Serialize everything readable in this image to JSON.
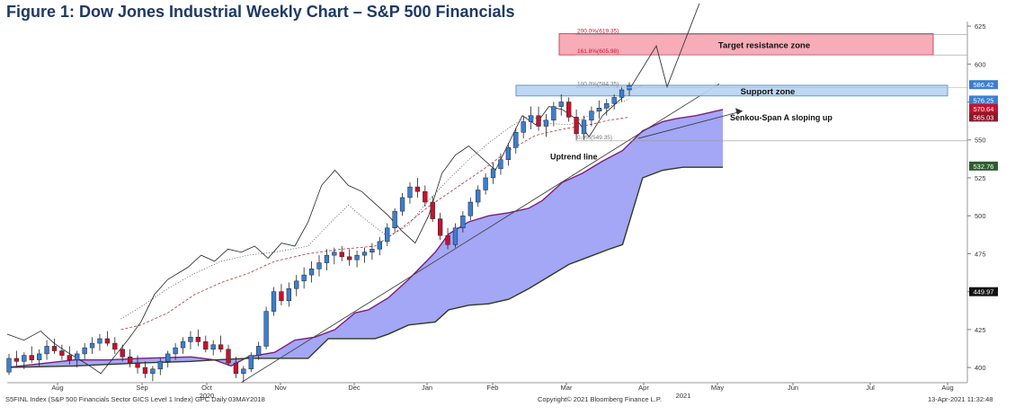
{
  "title": "Figure 1: Dow Jones Industrial Weekly Chart – S&P 500 Financials",
  "footer": {
    "left": "S5FINL Index (S&P 500 Financials Sector GICS Level 1 Index) GPC  Daily 03MAY2018",
    "center": "Copyright© 2021 Bloomberg Finance L.P.",
    "right": "13-Apr-2021 11:32:48"
  },
  "colors": {
    "up": "#3a7fd0",
    "down": "#c8102e",
    "cloud": "#9a9cf5",
    "resistance_fill": "#f7a6b3",
    "resistance_border": "#d23a52",
    "support_fill": "#b9d4f2",
    "support_border": "#5a8fcf",
    "accent_fib": "#c8102e"
  },
  "chart_data": {
    "type": "candlestick",
    "x_ticks": [
      "Aug",
      "Sep",
      "Oct",
      "Nov",
      "Dec",
      "Jan",
      "Feb",
      "Mar",
      "Apr",
      "May",
      "Jun",
      "Jul",
      "Aug"
    ],
    "year_labels": [
      "2020",
      "2021"
    ],
    "y_ticks": [
      400,
      425,
      450,
      475,
      500,
      525,
      550,
      575,
      600,
      625
    ],
    "ylim": [
      390,
      628
    ],
    "price_tags": [
      {
        "value": 586.42,
        "label": "586.42",
        "color": "#3a7fd0"
      },
      {
        "value": 576.25,
        "label": "576.25",
        "color": "#3a7fd0"
      },
      {
        "value": 570.64,
        "label": "570.64",
        "color": "#c8102e"
      },
      {
        "value": 565.03,
        "label": "565.03",
        "color": "#8b1a2b"
      },
      {
        "value": 532.76,
        "label": "532.76",
        "color": "#2e5d2e"
      },
      {
        "value": 449.97,
        "label": "449.97",
        "color": "#111111"
      }
    ],
    "fib_levels": [
      {
        "label": "200.0%(619.35)",
        "value": 619.35
      },
      {
        "label": "161.8%(605.98)",
        "value": 605.98
      },
      {
        "label": "100.0%(584.35)",
        "value": 584.35
      },
      {
        "label": "0.0%(549.35)",
        "value": 549.35
      }
    ],
    "zones": [
      {
        "name": "Target resistance zone",
        "low": 606,
        "high": 620
      },
      {
        "name": "Support zone",
        "low": 579,
        "high": 586
      }
    ],
    "annotations": [
      "Senkou-Span A sloping up",
      "Uptrend line"
    ],
    "candles_ohlc": [
      [
        397,
        409,
        395,
        406
      ],
      [
        406,
        411,
        401,
        404
      ],
      [
        404,
        410,
        399,
        408
      ],
      [
        408,
        414,
        403,
        405
      ],
      [
        405,
        412,
        401,
        409
      ],
      [
        409,
        418,
        405,
        414
      ],
      [
        414,
        419,
        409,
        411
      ],
      [
        411,
        415,
        405,
        408
      ],
      [
        408,
        414,
        402,
        405
      ],
      [
        405,
        411,
        400,
        409
      ],
      [
        409,
        416,
        405,
        413
      ],
      [
        413,
        420,
        409,
        416
      ],
      [
        416,
        422,
        411,
        419
      ],
      [
        419,
        424,
        414,
        416
      ],
      [
        416,
        420,
        409,
        412
      ],
      [
        412,
        415,
        404,
        407
      ],
      [
        407,
        412,
        400,
        403
      ],
      [
        403,
        408,
        396,
        400
      ],
      [
        400,
        404,
        393,
        396
      ],
      [
        396,
        401,
        391,
        399
      ],
      [
        399,
        406,
        395,
        404
      ],
      [
        404,
        411,
        400,
        409
      ],
      [
        409,
        416,
        405,
        413
      ],
      [
        413,
        420,
        409,
        417
      ],
      [
        417,
        424,
        412,
        420
      ],
      [
        420,
        425,
        414,
        417
      ],
      [
        417,
        421,
        410,
        412
      ],
      [
        412,
        418,
        408,
        415
      ],
      [
        415,
        421,
        410,
        412
      ],
      [
        412,
        415,
        401,
        403
      ],
      [
        403,
        407,
        393,
        396
      ],
      [
        396,
        401,
        390,
        399
      ],
      [
        399,
        410,
        397,
        408
      ],
      [
        408,
        417,
        405,
        414
      ],
      [
        414,
        440,
        412,
        437
      ],
      [
        437,
        453,
        434,
        450
      ],
      [
        450,
        455,
        441,
        444
      ],
      [
        444,
        456,
        440,
        452
      ],
      [
        452,
        461,
        447,
        457
      ],
      [
        457,
        466,
        452,
        461
      ],
      [
        461,
        470,
        456,
        465
      ],
      [
        465,
        474,
        460,
        469
      ],
      [
        469,
        478,
        464,
        474
      ],
      [
        474,
        479,
        468,
        476
      ],
      [
        476,
        480,
        470,
        473
      ],
      [
        473,
        478,
        467,
        471
      ],
      [
        471,
        477,
        466,
        474
      ],
      [
        474,
        479,
        469,
        476
      ],
      [
        476,
        482,
        471,
        478
      ],
      [
        478,
        486,
        474,
        483
      ],
      [
        483,
        495,
        480,
        492
      ],
      [
        492,
        505,
        489,
        503
      ],
      [
        503,
        515,
        500,
        512
      ],
      [
        512,
        522,
        508,
        519
      ],
      [
        519,
        525,
        512,
        516
      ],
      [
        516,
        520,
        506,
        509
      ],
      [
        509,
        513,
        496,
        498
      ],
      [
        498,
        502,
        484,
        487
      ],
      [
        487,
        492,
        478,
        481
      ],
      [
        481,
        495,
        479,
        492
      ],
      [
        492,
        503,
        489,
        500
      ],
      [
        500,
        512,
        497,
        509
      ],
      [
        509,
        520,
        506,
        517
      ],
      [
        517,
        528,
        514,
        525
      ],
      [
        525,
        535,
        521,
        531
      ],
      [
        531,
        541,
        527,
        537
      ],
      [
        537,
        548,
        533,
        545
      ],
      [
        545,
        558,
        541,
        555
      ],
      [
        555,
        566,
        551,
        562
      ],
      [
        562,
        572,
        557,
        566
      ],
      [
        566,
        572,
        556,
        559
      ],
      [
        559,
        567,
        552,
        563
      ],
      [
        563,
        575,
        559,
        572
      ],
      [
        572,
        580,
        566,
        575
      ],
      [
        575,
        578,
        562,
        565
      ],
      [
        565,
        570,
        550,
        554
      ],
      [
        554,
        566,
        550,
        563
      ],
      [
        563,
        572,
        559,
        569
      ],
      [
        569,
        576,
        564,
        571
      ],
      [
        571,
        577,
        566,
        574
      ],
      [
        574,
        580,
        570,
        578
      ],
      [
        578,
        585,
        575,
        583
      ],
      [
        583,
        588,
        579,
        586
      ]
    ],
    "senkou_a": [
      [
        0,
        400
      ],
      [
        20,
        405
      ],
      [
        30,
        405
      ],
      [
        40,
        406
      ],
      [
        55,
        407
      ],
      [
        62,
        405
      ],
      [
        67,
        401
      ],
      [
        72,
        407
      ],
      [
        80,
        410
      ],
      [
        86,
        418
      ],
      [
        92,
        420
      ],
      [
        98,
        425
      ],
      [
        104,
        436
      ],
      [
        108,
        438
      ],
      [
        114,
        446
      ],
      [
        120,
        458
      ],
      [
        128,
        476
      ],
      [
        132,
        488
      ],
      [
        138,
        496
      ],
      [
        144,
        500
      ],
      [
        150,
        502
      ],
      [
        156,
        505
      ],
      [
        160,
        510
      ],
      [
        166,
        522
      ],
      [
        172,
        528
      ],
      [
        178,
        536
      ],
      [
        184,
        543
      ],
      [
        190,
        556
      ],
      [
        196,
        562
      ],
      [
        200,
        564
      ],
      [
        206,
        566
      ],
      [
        214,
        570
      ]
    ],
    "senkou_b": [
      [
        0,
        400
      ],
      [
        20,
        401
      ],
      [
        30,
        402
      ],
      [
        40,
        403
      ],
      [
        55,
        404
      ],
      [
        62,
        405
      ],
      [
        72,
        406
      ],
      [
        90,
        406
      ],
      [
        96,
        419
      ],
      [
        110,
        419
      ],
      [
        114,
        422
      ],
      [
        120,
        428
      ],
      [
        128,
        430
      ],
      [
        132,
        438
      ],
      [
        138,
        441
      ],
      [
        144,
        442
      ],
      [
        150,
        445
      ],
      [
        156,
        452
      ],
      [
        162,
        460
      ],
      [
        168,
        468
      ],
      [
        174,
        473
      ],
      [
        180,
        478
      ],
      [
        184,
        481
      ],
      [
        190,
        525
      ],
      [
        196,
        530
      ],
      [
        202,
        532
      ],
      [
        214,
        532
      ]
    ],
    "chikou": [
      [
        0,
        422
      ],
      [
        5,
        418
      ],
      [
        10,
        424
      ],
      [
        14,
        416
      ],
      [
        18,
        410
      ],
      [
        24,
        402
      ],
      [
        28,
        396
      ],
      [
        32,
        407
      ],
      [
        36,
        418
      ],
      [
        40,
        430
      ],
      [
        44,
        448
      ],
      [
        48,
        458
      ],
      [
        54,
        466
      ],
      [
        58,
        474
      ],
      [
        62,
        470
      ],
      [
        66,
        478
      ],
      [
        70,
        476
      ],
      [
        74,
        480
      ],
      [
        78,
        472
      ],
      [
        82,
        482
      ],
      [
        86,
        480
      ],
      [
        90,
        496
      ],
      [
        94,
        520
      ],
      [
        98,
        530
      ],
      [
        102,
        520
      ],
      [
        106,
        516
      ],
      [
        110,
        508
      ],
      [
        114,
        500
      ],
      [
        118,
        490
      ],
      [
        122,
        482
      ],
      [
        126,
        500
      ],
      [
        130,
        528
      ],
      [
        134,
        540
      ],
      [
        138,
        546
      ],
      [
        142,
        538
      ],
      [
        146,
        530
      ],
      [
        150,
        548
      ],
      [
        154,
        566
      ],
      [
        158,
        560
      ],
      [
        162,
        572
      ],
      [
        166,
        570
      ],
      [
        170,
        564
      ],
      [
        174,
        552
      ],
      [
        178,
        566
      ],
      [
        182,
        574
      ],
      [
        186,
        582
      ],
      [
        190,
        586
      ]
    ],
    "kijun": [
      [
        34,
        425
      ],
      [
        40,
        428
      ],
      [
        48,
        436
      ],
      [
        56,
        448
      ],
      [
        64,
        456
      ],
      [
        72,
        462
      ],
      [
        80,
        470
      ],
      [
        90,
        475
      ],
      [
        100,
        478
      ],
      [
        110,
        480
      ],
      [
        118,
        492
      ],
      [
        126,
        506
      ],
      [
        134,
        518
      ],
      [
        142,
        530
      ],
      [
        150,
        543
      ],
      [
        158,
        553
      ],
      [
        166,
        557
      ],
      [
        174,
        560
      ],
      [
        180,
        563
      ],
      [
        186,
        565
      ]
    ],
    "tenkan": [
      [
        34,
        432
      ],
      [
        40,
        440
      ],
      [
        48,
        452
      ],
      [
        56,
        462
      ],
      [
        64,
        470
      ],
      [
        72,
        474
      ],
      [
        80,
        476
      ],
      [
        90,
        480
      ],
      [
        96,
        494
      ],
      [
        102,
        507
      ],
      [
        108,
        496
      ],
      [
        114,
        486
      ],
      [
        120,
        494
      ],
      [
        126,
        510
      ],
      [
        132,
        524
      ],
      [
        138,
        537
      ],
      [
        144,
        548
      ],
      [
        150,
        558
      ],
      [
        156,
        566
      ],
      [
        162,
        561
      ],
      [
        168,
        560
      ],
      [
        174,
        566
      ],
      [
        180,
        572
      ],
      [
        186,
        577
      ]
    ]
  }
}
